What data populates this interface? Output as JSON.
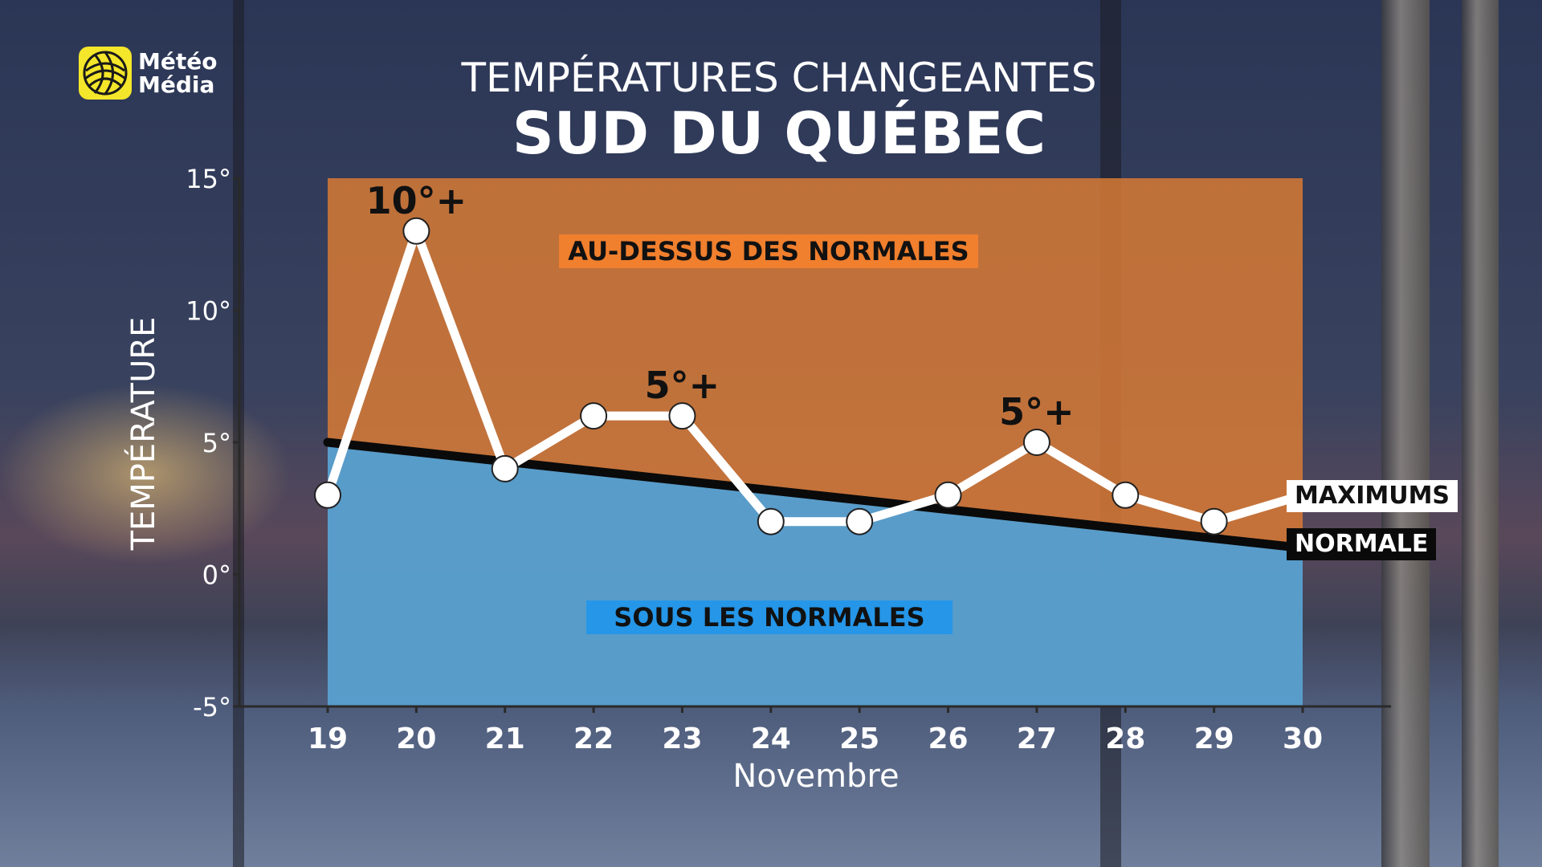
{
  "brand": {
    "logo_line1": "Météo",
    "logo_line2": "Média"
  },
  "header": {
    "title_line1": "TEMPÉRATURES CHANGEANTES",
    "title_line2": "SUD DU QUÉBEC"
  },
  "labels": {
    "above_normal": "AU-DESSUS DES NORMALES",
    "below_normal": "SOUS LES NORMALES",
    "maximums": "MAXIMUMS",
    "normale": "NORMALE"
  },
  "colors": {
    "above_band": "#d87a35",
    "below_band": "#4f9fd6",
    "above_label_bg": "#f07f2e",
    "below_label_bg": "#2596e8",
    "max_line": "#ffffff",
    "normal_line": "#0a0a0a",
    "logo_yellow": "#f4e62a"
  },
  "chart_data": {
    "type": "line",
    "ylabel": "TEMPÉRATURE",
    "xlabel": "Novembre",
    "ylim": [
      -5,
      15
    ],
    "yticks": [
      -5,
      0,
      5,
      10,
      15
    ],
    "ytick_labels": [
      "-5°",
      "0°",
      "5°",
      "10°",
      "15°"
    ],
    "categories": [
      "19",
      "20",
      "21",
      "22",
      "23",
      "24",
      "25",
      "26",
      "27",
      "28",
      "29",
      "30"
    ],
    "series": [
      {
        "name": "MAXIMUMS",
        "values": [
          3,
          13,
          4,
          6,
          6,
          2,
          2,
          3,
          5,
          3,
          2,
          3
        ]
      },
      {
        "name": "NORMALE",
        "values": [
          5,
          4.64,
          4.27,
          3.91,
          3.55,
          3.18,
          2.82,
          2.45,
          2.09,
          1.73,
          1.36,
          1
        ]
      }
    ],
    "annotations": [
      {
        "text": "10°+",
        "x": "20",
        "y": 13
      },
      {
        "text": "5°+",
        "x": "23",
        "y": 6
      },
      {
        "text": "5°+",
        "x": "27",
        "y": 5
      }
    ],
    "grid": false
  }
}
